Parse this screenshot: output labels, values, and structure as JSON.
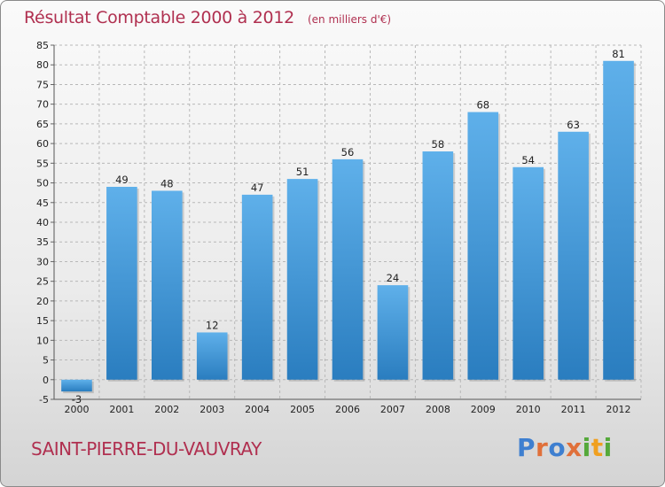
{
  "header": {
    "title": "Résultat Comptable 2000 à 2012",
    "subtitle": "(en milliers d'€)"
  },
  "footer": {
    "commune": "SAINT-PIERRE-DU-VAUVRAY",
    "logo": "Proxiti"
  },
  "colors": {
    "bar_top": "#5fb0ea",
    "bar_bottom": "#2a7dbf",
    "title": "#b03050",
    "grid": "#b8b8b8"
  },
  "chart_data": {
    "type": "bar",
    "title": "Résultat Comptable 2000 à 2012",
    "subtitle": "(en milliers d'€)",
    "categories": [
      "2000",
      "2001",
      "2002",
      "2003",
      "2004",
      "2005",
      "2006",
      "2007",
      "2008",
      "2009",
      "2010",
      "2011",
      "2012"
    ],
    "values": [
      -3,
      49,
      48,
      12,
      47,
      51,
      56,
      24,
      58,
      68,
      54,
      63,
      81
    ],
    "data_labels": [
      "-3",
      "49",
      "48",
      "12",
      "47",
      "51",
      "56",
      "24",
      "58",
      "68",
      "54",
      "63",
      "81"
    ],
    "ylim": [
      -5,
      85
    ],
    "yticks": [
      -5,
      0,
      5,
      10,
      15,
      20,
      25,
      30,
      35,
      40,
      45,
      50,
      55,
      60,
      65,
      70,
      75,
      80,
      85
    ],
    "grid": "horizontal dashed",
    "legend": "none"
  }
}
